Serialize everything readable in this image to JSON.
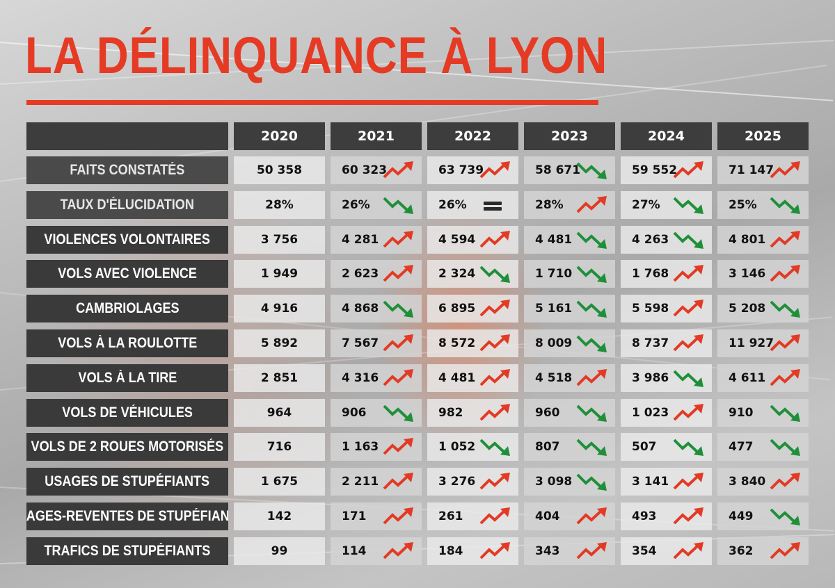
{
  "title": "LA DÉLINQUANCE À LYON",
  "colors": {
    "title": "#e53a24",
    "up": "#e23a24",
    "down": "#1f8f3a",
    "flat": "#2a2a2a"
  },
  "chart_data": {
    "type": "table",
    "years": [
      "2020",
      "2021",
      "2022",
      "2023",
      "2024",
      "2025"
    ],
    "rows": [
      {
        "label": "FAITS CONSTATÉS",
        "values": [
          "50 358",
          "60 323",
          "63 739",
          "58 671",
          "59 552",
          "71 147"
        ],
        "trends": [
          null,
          "up",
          "up",
          "down",
          "up",
          "up"
        ]
      },
      {
        "label": "TAUX D'ÉLUCIDATION",
        "values": [
          "28%",
          "26%",
          "26%",
          "28%",
          "27%",
          "25%"
        ],
        "trends": [
          null,
          "down",
          "flat",
          "up",
          "down",
          "down"
        ]
      },
      {
        "label": "VIOLENCES VOLONTAIRES",
        "values": [
          "3 756",
          "4 281",
          "4 594",
          "4 481",
          "4 263",
          "4 801"
        ],
        "trends": [
          null,
          "up",
          "up",
          "down",
          "down",
          "up"
        ]
      },
      {
        "label": "VOLS AVEC VIOLENCE",
        "values": [
          "1 949",
          "2 623",
          "2 324",
          "1 710",
          "1 768",
          "3 146"
        ],
        "trends": [
          null,
          "up",
          "down",
          "down",
          "up",
          "up"
        ]
      },
      {
        "label": "CAMBRIOLAGES",
        "values": [
          "4 916",
          "4 868",
          "6 895",
          "5 161",
          "5 598",
          "5 208"
        ],
        "trends": [
          null,
          "down",
          "up",
          "down",
          "up",
          "down"
        ]
      },
      {
        "label": "VOLS À LA ROULOTTE",
        "values": [
          "5 892",
          "7 567",
          "8 572",
          "8 009",
          "8 737",
          "11 927"
        ],
        "trends": [
          null,
          "up",
          "up",
          "down",
          "up",
          "up"
        ]
      },
      {
        "label": "VOLS À LA TIRE",
        "values": [
          "2 851",
          "4 316",
          "4 481",
          "4 518",
          "3 986",
          "4 611"
        ],
        "trends": [
          null,
          "up",
          "up",
          "up",
          "down",
          "up"
        ]
      },
      {
        "label": "VOLS DE VÉHICULES",
        "values": [
          "964",
          "906",
          "982",
          "960",
          "1 023",
          "910"
        ],
        "trends": [
          null,
          "down",
          "up",
          "down",
          "up",
          "down"
        ]
      },
      {
        "label": "VOLS DE 2 ROUES MOTORISÉS",
        "values": [
          "716",
          "1 163",
          "1 052",
          "807",
          "507",
          "477"
        ],
        "trends": [
          null,
          "up",
          "down",
          "down",
          "down",
          "down"
        ]
      },
      {
        "label": "USAGES DE STUPÉFIANTS",
        "values": [
          "1 675",
          "2 211",
          "3 276",
          "3 098",
          "3 141",
          "3 840"
        ],
        "trends": [
          null,
          "up",
          "up",
          "down",
          "up",
          "up"
        ]
      },
      {
        "label": "USAGES-REVENTES DE STUPÉFIANTS",
        "values": [
          "142",
          "171",
          "261",
          "404",
          "493",
          "449"
        ],
        "trends": [
          null,
          "up",
          "up",
          "up",
          "up",
          "down"
        ]
      },
      {
        "label": "TRAFICS DE STUPÉFIANTS",
        "values": [
          "99",
          "114",
          "184",
          "343",
          "354",
          "362"
        ],
        "trends": [
          null,
          "up",
          "up",
          "up",
          "up",
          "up"
        ]
      }
    ]
  }
}
